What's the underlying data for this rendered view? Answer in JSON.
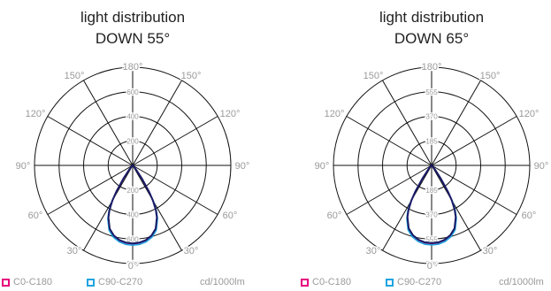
{
  "chart_data": [
    {
      "type": "polar",
      "title_line1": "light distribution",
      "title_line2": "DOWN 55°",
      "radial_ticks": [
        "200",
        "400",
        "600",
        "800"
      ],
      "radial_max": 800,
      "angle_labels": {
        "a0": "0°",
        "a30": "30°",
        "a60": "60°",
        "a90": "90°",
        "a120": "120°",
        "a150": "150°",
        "a180": "180°"
      },
      "unit": "cd/1000lm",
      "series": [
        {
          "name": "C0-C180",
          "color": "#e6007e",
          "angles": [
            0,
            5,
            10,
            15,
            20,
            25,
            27.5,
            30,
            32,
            35,
            40,
            50,
            60,
            70,
            90
          ],
          "values": [
            640,
            636,
            622,
            596,
            552,
            470,
            410,
            330,
            250,
            130,
            40,
            10,
            0,
            0,
            0
          ]
        },
        {
          "name": "C90-C270",
          "color": "#1fa3e0",
          "angles": [
            0,
            5,
            10,
            15,
            20,
            25,
            27.5,
            30,
            32,
            35,
            40,
            50,
            60,
            70,
            90
          ],
          "values": [
            650,
            646,
            632,
            606,
            562,
            480,
            420,
            340,
            255,
            135,
            42,
            10,
            0,
            0,
            0
          ]
        }
      ],
      "composite_color": "#1a1a66"
    },
    {
      "type": "polar",
      "title_line1": "light distribution",
      "title_line2": "DOWN 65°",
      "radial_ticks": [
        "185",
        "370",
        "555",
        "740"
      ],
      "radial_max": 740,
      "angle_labels": {
        "a0": "0°",
        "a30": "30°",
        "a60": "60°",
        "a90": "90°",
        "a120": "120°",
        "a150": "150°",
        "a180": "180°"
      },
      "unit": "cd/1000lm",
      "series": [
        {
          "name": "C0-C180",
          "color": "#e6007e",
          "angles": [
            0,
            5,
            10,
            15,
            20,
            25,
            27.5,
            30,
            32,
            35,
            40,
            50,
            60,
            70,
            90
          ],
          "values": [
            590,
            586,
            572,
            548,
            508,
            432,
            378,
            304,
            230,
            120,
            36,
            9,
            0,
            0,
            0
          ]
        },
        {
          "name": "C90-C270",
          "color": "#1fa3e0",
          "angles": [
            0,
            5,
            10,
            15,
            20,
            25,
            27.5,
            30,
            32,
            35,
            40,
            50,
            60,
            70,
            90
          ],
          "values": [
            600,
            596,
            582,
            558,
            518,
            442,
            388,
            314,
            236,
            124,
            38,
            9,
            0,
            0,
            0
          ]
        }
      ],
      "composite_color": "#1a1a66"
    }
  ]
}
